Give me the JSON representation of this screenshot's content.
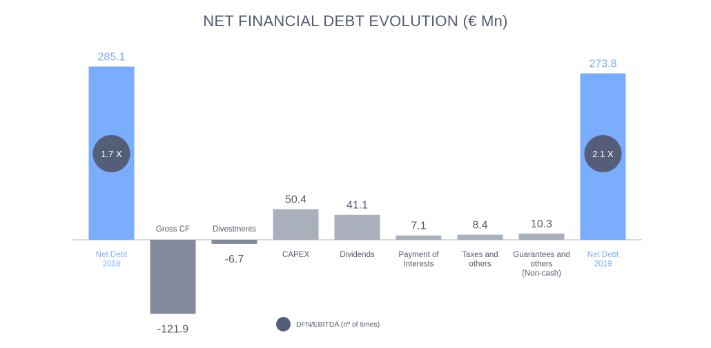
{
  "chart_data": {
    "type": "bar",
    "subtype": "waterfall",
    "title": "NET FINANCIAL DEBT EVOLUTION  (€ Mn)",
    "categories": [
      [
        "Net Debt",
        "2018"
      ],
      [
        "Gross CF"
      ],
      [
        "Divestments"
      ],
      [
        "CAPEX"
      ],
      [
        "Dividends"
      ],
      [
        "Payment of",
        "Interests"
      ],
      [
        "Taxes and",
        "others"
      ],
      [
        "Guarantees and",
        "others",
        "(Non-cash)"
      ],
      [
        "Net Debt",
        "2019"
      ]
    ],
    "values": [
      285.1,
      -121.9,
      -6.7,
      50.4,
      41.1,
      7.1,
      8.4,
      10.3,
      273.8
    ],
    "value_labels": [
      "285.1",
      "-121.9",
      "-6.7",
      "50.4",
      "41.1",
      "7.1",
      "8.4",
      "10.3",
      "273.8"
    ],
    "kinds": [
      "total",
      "change",
      "change",
      "change",
      "change",
      "change",
      "change",
      "change",
      "total"
    ],
    "ratio_badges": [
      {
        "category_index": 0,
        "label": "1.7 X"
      },
      {
        "category_index": 8,
        "label": "2.1 X"
      }
    ],
    "legend": [
      {
        "label": "DFN/EBITDA (nº of times)",
        "color": "#555e78"
      }
    ],
    "colors": {
      "total": "#7aadff",
      "total_label": "#7aadff",
      "negative": "#828a9b",
      "positive": "#a9afbb",
      "axis": "#b0b5c0",
      "text": "#555b6e",
      "badge": "#555e78",
      "badge_text": "#ffffff"
    },
    "xlabel": "",
    "ylabel": "",
    "grid": false,
    "legend_position": "bottom-center"
  }
}
